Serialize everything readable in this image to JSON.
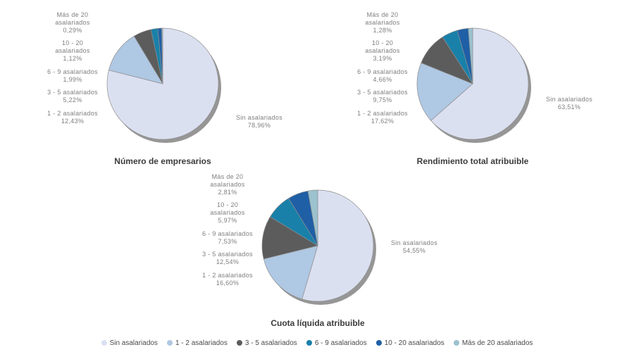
{
  "palette": [
    "#DBE0F1",
    "#AFC8E3",
    "#5C5C5C",
    "#1981A9",
    "#1F5FA6",
    "#9BC2CE"
  ],
  "style": {
    "shadow_color": "#969696",
    "slice_border_color": "#8F8F8F",
    "callout_text_color": "#7E7E7E",
    "title_text_color": "#3B3B3B",
    "legend_text_color": "#4A4A4A",
    "background": "#FFFFFF"
  },
  "categories": [
    "Sin asalariados",
    "1 - 2 asalariados",
    "3 - 5 asalariados",
    "6 - 9 asalariados",
    "10 - 20 asalariados",
    "Más de 20 asalariados"
  ],
  "chart_data": [
    {
      "type": "pie",
      "title": "Número de empresarios",
      "unit": "percent",
      "legend_position": "bottom",
      "series": [
        {
          "label": "Sin asalariados",
          "label_wrapped": "Sin asalariados",
          "value": 78.96,
          "display": "78,96%"
        },
        {
          "label": "1 - 2 asalariados",
          "label_wrapped": "1 - 2 asalariados",
          "value": 12.43,
          "display": "12,43%"
        },
        {
          "label": "3 - 5 asalariados",
          "label_wrapped": "3 - 5 asalariados",
          "value": 5.22,
          "display": "5,22%"
        },
        {
          "label": "6 - 9 asalariados",
          "label_wrapped": "6 - 9 asalariados",
          "value": 1.99,
          "display": "1,99%"
        },
        {
          "label": "10 - 20 asalariados",
          "label_wrapped": "10 - 20\nasalariados",
          "value": 1.12,
          "display": "1,12%"
        },
        {
          "label": "Más de 20 asalariados",
          "label_wrapped": "Más de 20\nasalariados",
          "value": 0.29,
          "display": "0,29%"
        }
      ]
    },
    {
      "type": "pie",
      "title": "Rendimiento total atribuible",
      "unit": "percent",
      "legend_position": "bottom",
      "series": [
        {
          "label": "Sin asalariados",
          "label_wrapped": "Sin asalariados",
          "value": 63.51,
          "display": "63,51%"
        },
        {
          "label": "1 - 2 asalariados",
          "label_wrapped": "1 - 2 asalariados",
          "value": 17.62,
          "display": "17,62%"
        },
        {
          "label": "3 - 5 asalariados",
          "label_wrapped": "3 - 5 asalariados",
          "value": 9.75,
          "display": "9,75%"
        },
        {
          "label": "6 - 9 asalariados",
          "label_wrapped": "6 - 9 asalariados",
          "value": 4.66,
          "display": "4,66%"
        },
        {
          "label": "10 - 20 asalariados",
          "label_wrapped": "10 - 20\nasalariados",
          "value": 3.19,
          "display": "3,19%"
        },
        {
          "label": "Más de 20 asalariados",
          "label_wrapped": "Más de 20\nasalariados",
          "value": 1.28,
          "display": "1,28%"
        }
      ]
    },
    {
      "type": "pie",
      "title": "Cuota líquida atribuible",
      "unit": "percent",
      "legend_position": "bottom",
      "series": [
        {
          "label": "Sin asalariados",
          "label_wrapped": "Sin asalariados",
          "value": 54.55,
          "display": "54,55%"
        },
        {
          "label": "1 - 2 asalariados",
          "label_wrapped": "1 - 2 asalariados",
          "value": 16.6,
          "display": "16,60%"
        },
        {
          "label": "3 - 5 asalariados",
          "label_wrapped": "3 - 5 asalariados",
          "value": 12.54,
          "display": "12,54%"
        },
        {
          "label": "6 - 9 asalariados",
          "label_wrapped": "6 - 9 asalariados",
          "value": 7.53,
          "display": "7,53%"
        },
        {
          "label": "10 - 20 asalariados",
          "label_wrapped": "10 - 20\nasalariados",
          "value": 5.97,
          "display": "5,97%"
        },
        {
          "label": "Más de 20 asalariados",
          "label_wrapped": "Más de 20\nasalariados",
          "value": 2.81,
          "display": "2,81%"
        }
      ]
    }
  ],
  "legend": {
    "items": [
      {
        "label": "Sin asalariados",
        "color": "#DBE0F1"
      },
      {
        "label": "1 - 2 asalariados",
        "color": "#AFC8E3"
      },
      {
        "label": "3 - 5 asalariados",
        "color": "#5C5C5C"
      },
      {
        "label": "6 - 9 asalariados",
        "color": "#1981A9"
      },
      {
        "label": "10 - 20 asalariados",
        "color": "#1F5FA6"
      },
      {
        "label": "Más de 20 asalariados",
        "color": "#9BC2CE"
      }
    ]
  }
}
